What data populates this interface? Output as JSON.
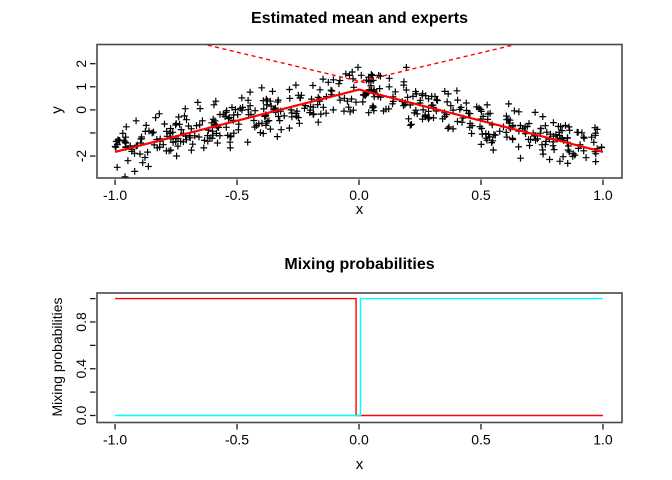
{
  "figure": {
    "background": "#ffffff",
    "box_color": "#4a4a4a",
    "tick_color": "#1a1a1a",
    "text_color": "#000000",
    "accent_red": "#ff0000",
    "accent_cyan": "#00ffff",
    "scatter_color": "#000000"
  },
  "chart_data": [
    {
      "type": "scatter",
      "title": "Estimated mean and experts",
      "xlabel": "x",
      "ylabel": "y",
      "xlim": [
        -1.074,
        1.078
      ],
      "ylim": [
        -2.95,
        2.83
      ],
      "grid": false,
      "legend": "none",
      "x_ticks": [
        -1.0,
        -0.5,
        0.0,
        0.5,
        1.0
      ],
      "x_tick_labels": [
        "-1.0",
        "-0.5",
        "0.0",
        "0.5",
        "1.0"
      ],
      "y_ticks": [
        -2,
        -1,
        0,
        1,
        2
      ],
      "y_tick_labels": [
        "-2",
        "",
        "0",
        "1",
        "2"
      ],
      "scatter": {
        "marker": "plus",
        "color": "#000000",
        "n": 485,
        "seed": 20,
        "x_range": [
          -1,
          1
        ],
        "noise_sd": 0.5,
        "model": "y = 0.88 - 2.7*abs(x) + N(0, 0.5)"
      },
      "estimated_mean": {
        "name": "estimated-mean",
        "color": "#ff0000",
        "width": 2.2,
        "style": "solid",
        "points": [
          [
            -1.0,
            -1.82
          ],
          [
            0.0,
            0.88
          ],
          [
            1.0,
            -1.82
          ]
        ]
      },
      "experts": [
        {
          "name": "expert-1-extrapolation",
          "color": "#ff0000",
          "width": 1.4,
          "style": "dashed",
          "points": [
            [
              -0.02,
              1.17
            ],
            [
              0.63,
              2.8
            ]
          ]
        },
        {
          "name": "expert-2-extrapolation",
          "color": "#ff0000",
          "width": 1.4,
          "style": "dashed",
          "points": [
            [
              -0.62,
              2.8
            ],
            [
              0.04,
              1.14
            ]
          ]
        }
      ]
    },
    {
      "type": "line",
      "title": "Mixing probabilities",
      "xlabel": "x",
      "ylabel": "Mixing probabilities",
      "xlim": [
        -1.074,
        1.078
      ],
      "ylim": [
        -0.06,
        1.048
      ],
      "grid": false,
      "legend": "none",
      "x_ticks": [
        -1.0,
        -0.5,
        0.0,
        0.5,
        1.0
      ],
      "x_tick_labels": [
        "-1.0",
        "-0.5",
        "0.0",
        "0.5",
        "1.0"
      ],
      "y_ticks": [
        0.0,
        0.2,
        0.4,
        0.6,
        0.8,
        1.0
      ],
      "y_tick_labels": [
        "0.0",
        "",
        "0.4",
        "",
        "0.8",
        ""
      ],
      "series": [
        {
          "name": "expert-1-mixing-probability",
          "color": "#ff0000",
          "width": 1.4,
          "points": [
            [
              -1.0,
              1.0
            ],
            [
              -0.012,
              1.0
            ],
            [
              -0.012,
              0.0
            ],
            [
              1.0,
              0.0
            ]
          ]
        },
        {
          "name": "expert-2-mixing-probability",
          "color": "#00ffff",
          "width": 1.4,
          "points": [
            [
              -1.0,
              0.0
            ],
            [
              0.006,
              0.0
            ],
            [
              0.006,
              1.0
            ],
            [
              1.0,
              1.0
            ]
          ]
        }
      ]
    }
  ]
}
